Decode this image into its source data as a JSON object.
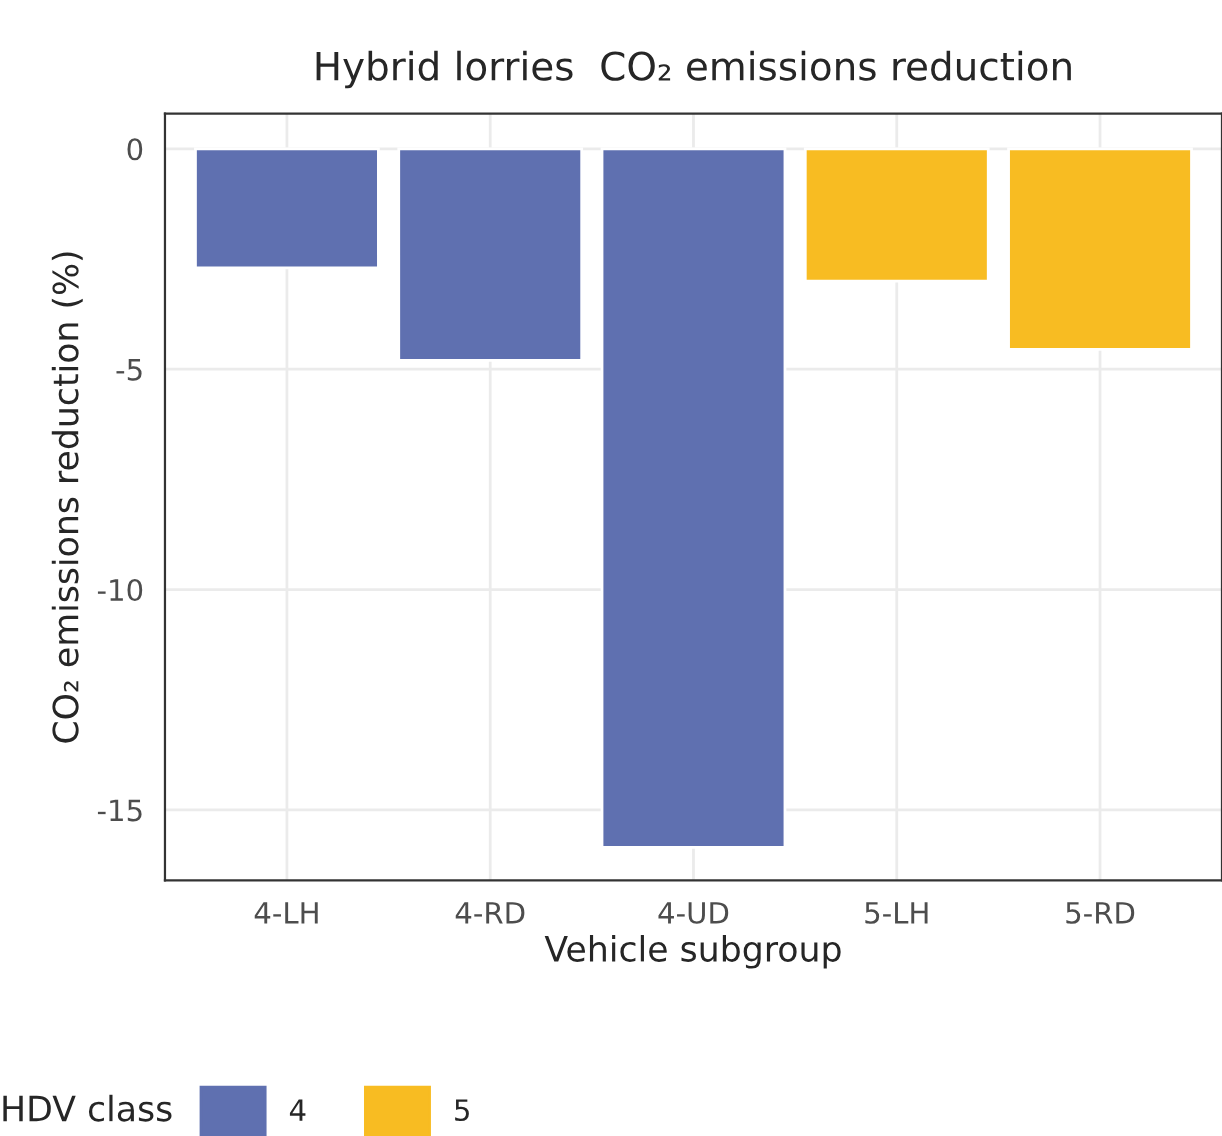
{
  "chart_data": {
    "type": "bar",
    "title": "Hybrid lorries  CO₂ emissions reduction",
    "xlabel": "Vehicle subgroup",
    "ylabel": "CO₂ emissions reduction (%)",
    "legend_title": "HDV class",
    "categories": [
      "4-LH",
      "4-RD",
      "4-UD",
      "5-LH",
      "5-RD"
    ],
    "series": [
      {
        "name": "4",
        "color": "#5f70b0",
        "values": [
          -2.7,
          -4.8,
          -15.85,
          null,
          null
        ]
      },
      {
        "name": "5",
        "color": "#f8bc22",
        "values": [
          null,
          null,
          null,
          -3.0,
          -4.55
        ]
      }
    ],
    "ylim": [
      -16.6,
      0.8
    ],
    "yticks": [
      -15,
      -10,
      -5,
      0
    ],
    "grid": true,
    "legend": "bottom"
  }
}
